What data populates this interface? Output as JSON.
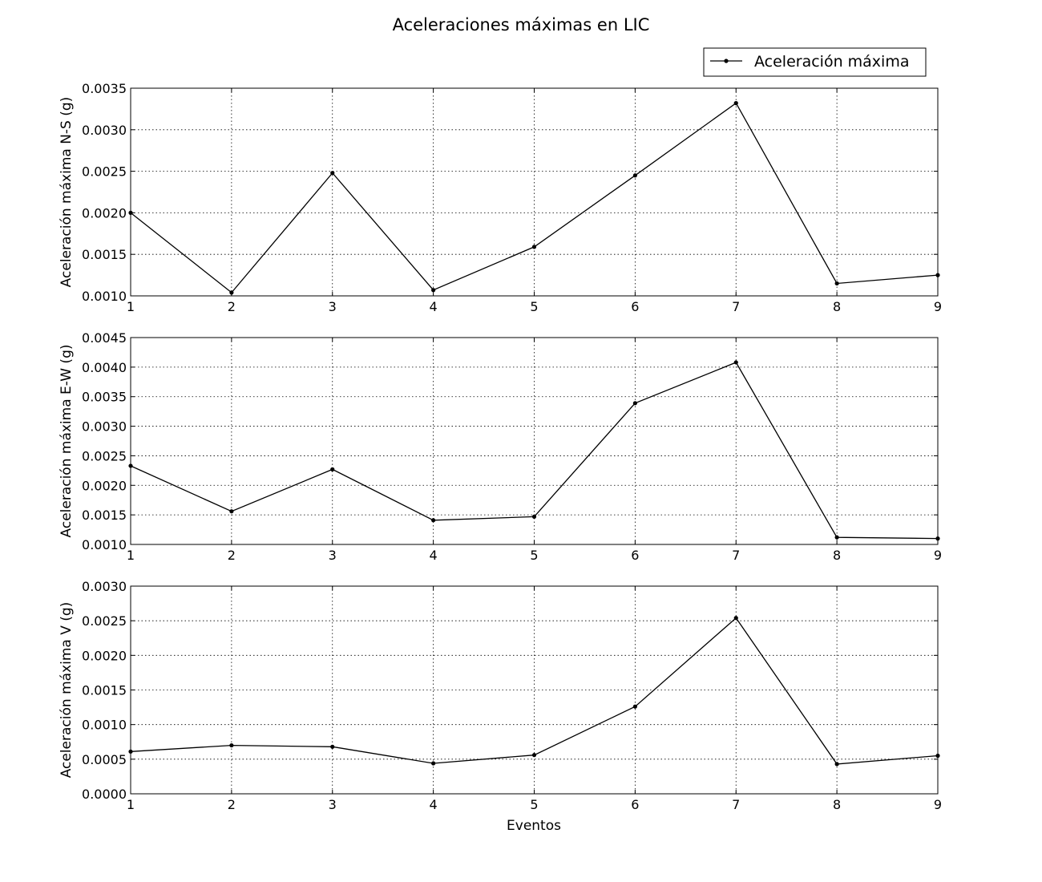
{
  "chart_data": {
    "type": "line",
    "title": "Aceleraciones máximas en LIC",
    "xlabel": "Eventos",
    "legend": {
      "label": "Aceleración máxima",
      "placement": "top-right"
    },
    "line_color": "#000000",
    "grid": true,
    "subplots": [
      {
        "id": "ns",
        "ylabel": "Aceleración máxima N-S (g)",
        "x": [
          1,
          2,
          3,
          4,
          5,
          6,
          7,
          8,
          9
        ],
        "values": [
          0.002,
          0.00104,
          0.00248,
          0.00107,
          0.00159,
          0.00245,
          0.00332,
          0.00115,
          0.00125
        ],
        "xlim": [
          1,
          9
        ],
        "ylim": [
          0.001,
          0.0035
        ],
        "xticks": [
          "1",
          "2",
          "3",
          "4",
          "5",
          "6",
          "7",
          "8",
          "9"
        ],
        "yticks": [
          "0.0010",
          "0.0015",
          "0.0020",
          "0.0025",
          "0.0030",
          "0.0035"
        ]
      },
      {
        "id": "ew",
        "ylabel": "Aceleración máxima E-W (g)",
        "x": [
          1,
          2,
          3,
          4,
          5,
          6,
          7,
          8,
          9
        ],
        "values": [
          0.00233,
          0.00156,
          0.00227,
          0.00141,
          0.00147,
          0.00339,
          0.00408,
          0.00112,
          0.0011
        ],
        "xlim": [
          1,
          9
        ],
        "ylim": [
          0.001,
          0.0045
        ],
        "xticks": [
          "1",
          "2",
          "3",
          "4",
          "5",
          "6",
          "7",
          "8",
          "9"
        ],
        "yticks": [
          "0.0010",
          "0.0015",
          "0.0020",
          "0.0025",
          "0.0030",
          "0.0035",
          "0.0040",
          "0.0045"
        ]
      },
      {
        "id": "v",
        "ylabel": "Aceleración máxima V (g)",
        "x": [
          1,
          2,
          3,
          4,
          5,
          6,
          7,
          8,
          9
        ],
        "values": [
          0.00061,
          0.0007,
          0.00068,
          0.00044,
          0.00056,
          0.00126,
          0.00254,
          0.00043,
          0.00055
        ],
        "xlim": [
          1,
          9
        ],
        "ylim": [
          0.0,
          0.003
        ],
        "xticks": [
          "1",
          "2",
          "3",
          "4",
          "5",
          "6",
          "7",
          "8",
          "9"
        ],
        "yticks": [
          "0.0000",
          "0.0005",
          "0.0010",
          "0.0015",
          "0.0020",
          "0.0025",
          "0.0030"
        ]
      }
    ]
  }
}
